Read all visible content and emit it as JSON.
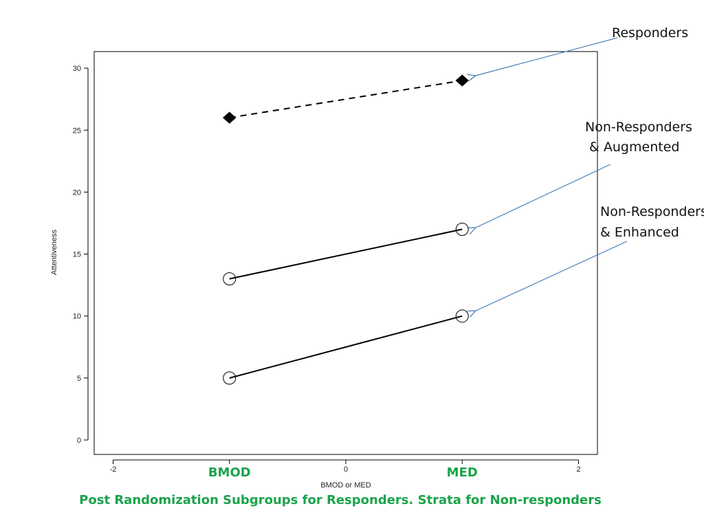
{
  "chart_data": {
    "type": "line",
    "xlabel": "BMOD   or   MED",
    "ylabel": "Attentiveness",
    "xlim": [
      -2,
      2
    ],
    "ylim": [
      0,
      30
    ],
    "x_ticks": [
      -2,
      0,
      2
    ],
    "y_ticks": [
      0,
      5,
      10,
      15,
      20,
      25,
      30
    ],
    "grid": false,
    "series": [
      {
        "name": "Responders",
        "x": [
          -1,
          1
        ],
        "y": [
          26,
          29
        ],
        "line_style": "dashed",
        "marker": "filled-diamond"
      },
      {
        "name": "Non-Responders & Augmented",
        "x": [
          -1,
          1
        ],
        "y": [
          13,
          17
        ],
        "line_style": "solid",
        "marker": "open-circle"
      },
      {
        "name": "Non-Responders & Enhanced",
        "x": [
          -1,
          1
        ],
        "y": [
          5,
          10
        ],
        "line_style": "solid",
        "marker": "open-circle"
      }
    ],
    "annotations": [
      {
        "lines": [
          "Responders"
        ],
        "target_series": 0
      },
      {
        "lines": [
          "Non-Responders",
          " & Augmented"
        ],
        "target_series": 1
      },
      {
        "lines": [
          "Non-Responders",
          "& Enhanced"
        ],
        "target_series": 2
      }
    ],
    "category_labels": [
      {
        "text": "BMOD",
        "x": -1
      },
      {
        "text": "MED",
        "x": 1
      }
    ],
    "caption": "Post Randomization Subgroups for Responders.   Strata for Non-responders",
    "colors": {
      "arrow": "#4a7fb5",
      "label_green": "#1aa34a",
      "line": "#000000"
    }
  }
}
